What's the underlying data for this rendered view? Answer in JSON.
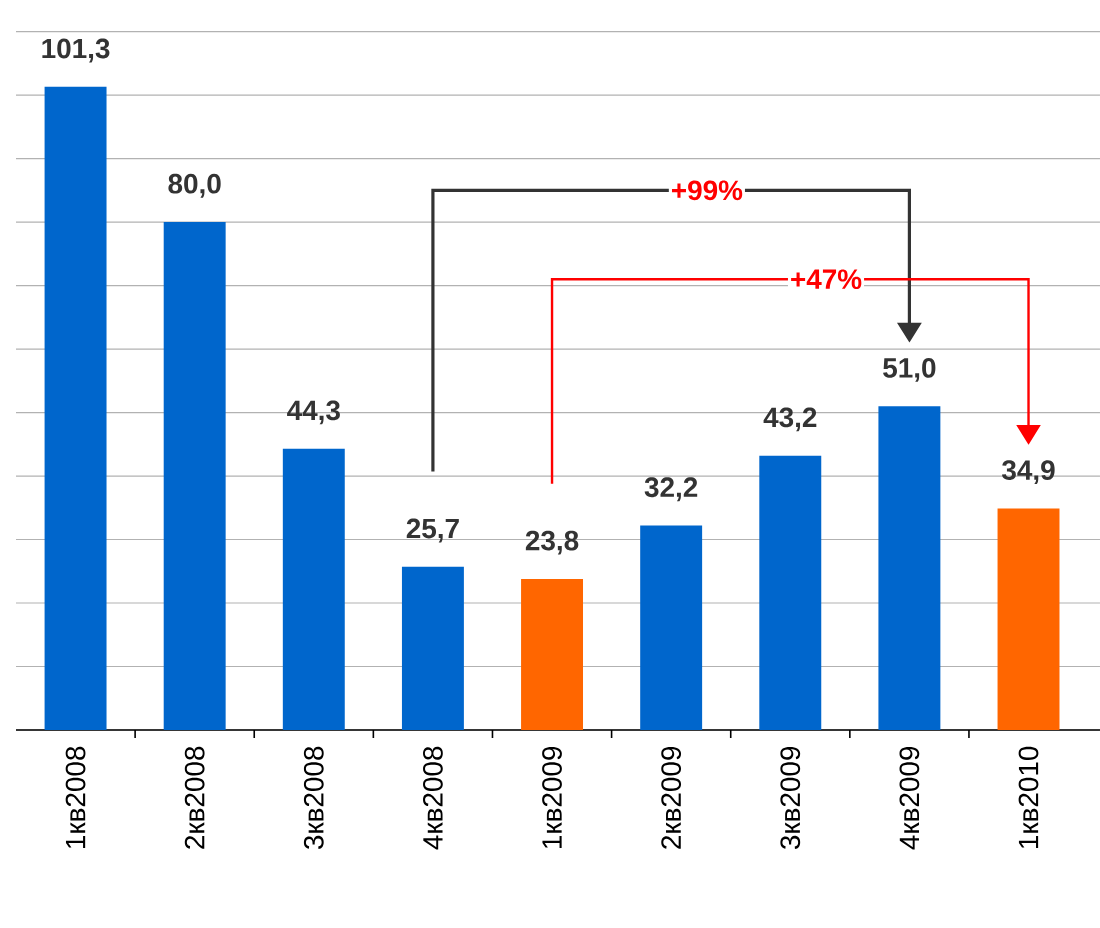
{
  "chart_data": {
    "type": "bar",
    "categories": [
      "1кв2008",
      "2кв2008",
      "3кв2008",
      "4кв2008",
      "1кв2009",
      "2кв2009",
      "3кв2009",
      "4кв2009",
      "1кв2010"
    ],
    "values": [
      101.3,
      80.0,
      44.3,
      25.7,
      23.8,
      32.2,
      43.2,
      51.0,
      34.9
    ],
    "colors": [
      "#0066cc",
      "#0066cc",
      "#0066cc",
      "#0066cc",
      "#ff6600",
      "#0066cc",
      "#0066cc",
      "#0066cc",
      "#ff6600"
    ],
    "value_labels": [
      "101,3",
      "80,0",
      "44,3",
      "25,7",
      "23,8",
      "32,2",
      "43,2",
      "51,0",
      "34,9"
    ],
    "grid": "y",
    "tick_labels": "x",
    "annotations": [
      "+99%",
      "+47%"
    ]
  }
}
